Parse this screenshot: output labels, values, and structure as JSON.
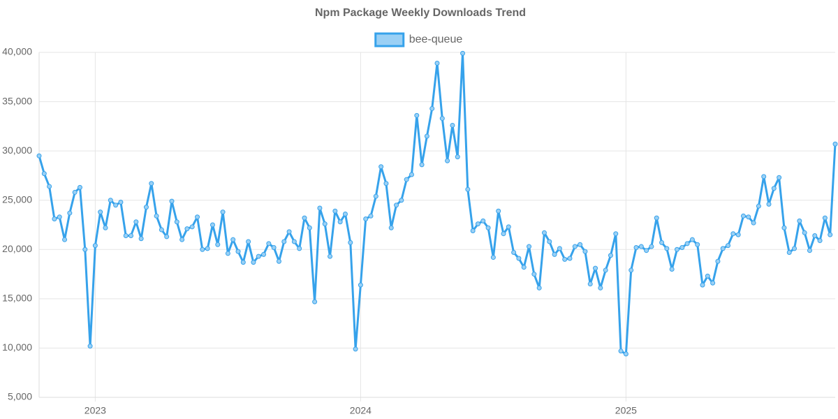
{
  "chart_data": {
    "type": "line",
    "title": "Npm Package Weekly Downloads Trend",
    "legend": "top",
    "grid": true,
    "categories": [
      null,
      null,
      null,
      null,
      null,
      null,
      null,
      null,
      null,
      null,
      null,
      "2023",
      null,
      null,
      null,
      null,
      null,
      null,
      null,
      null,
      null,
      null,
      null,
      null,
      null,
      null,
      null,
      null,
      null,
      null,
      null,
      null,
      null,
      null,
      null,
      null,
      null,
      null,
      null,
      null,
      null,
      null,
      null,
      null,
      null,
      null,
      null,
      null,
      null,
      null,
      null,
      null,
      null,
      null,
      null,
      null,
      null,
      null,
      null,
      null,
      null,
      null,
      null,
      "2024",
      null,
      null,
      null,
      null,
      null,
      null,
      null,
      null,
      null,
      null,
      null,
      null,
      null,
      null,
      null,
      null,
      null,
      null,
      null,
      null,
      null,
      null,
      null,
      null,
      null,
      null,
      null,
      null,
      null,
      null,
      null,
      null,
      null,
      null,
      null,
      null,
      null,
      null,
      null,
      null,
      null,
      null,
      null,
      null,
      null,
      null,
      null,
      null,
      null,
      null,
      null,
      "2025",
      null,
      null,
      null,
      null,
      null,
      null,
      null,
      null,
      null,
      null,
      null,
      null,
      null,
      null,
      null,
      null,
      null,
      null,
      null,
      null,
      null,
      null,
      null,
      null,
      null,
      null,
      null,
      null,
      null,
      null,
      null,
      null,
      null,
      null,
      null,
      null,
      null,
      null,
      null,
      null,
      null
    ],
    "series": [
      {
        "name": "bee-queue",
        "color": "#36a2eb",
        "fill": "#9ad0f5",
        "values": [
          29500,
          27700,
          26400,
          23100,
          23300,
          21000,
          23700,
          25800,
          26300,
          20000,
          10200,
          20400,
          23800,
          22200,
          25000,
          24500,
          24800,
          21400,
          21400,
          22800,
          21100,
          24300,
          26700,
          23400,
          22000,
          21300,
          24900,
          22800,
          21000,
          22100,
          22300,
          23300,
          20000,
          20100,
          22500,
          20500,
          23800,
          19600,
          21000,
          19800,
          18700,
          20800,
          18700,
          19300,
          19500,
          20600,
          20200,
          18800,
          20800,
          21800,
          20800,
          20100,
          23200,
          22200,
          14700,
          24200,
          22600,
          19300,
          23900,
          22800,
          23600,
          20700,
          9900,
          16400,
          23100,
          23400,
          25400,
          28400,
          26700,
          22200,
          24500,
          25000,
          27100,
          27600,
          33600,
          28600,
          31500,
          34300,
          38900,
          33300,
          29000,
          32600,
          29400,
          39900,
          26100,
          21900,
          22600,
          22900,
          22200,
          19200,
          23900,
          21600,
          22300,
          19700,
          19100,
          18200,
          20300,
          17500,
          16100,
          21700,
          20800,
          19500,
          20100,
          19000,
          19100,
          20300,
          20500,
          19800,
          16500,
          18100,
          16100,
          17900,
          19400,
          21600,
          9700,
          9400,
          17900,
          20200,
          20300,
          19900,
          20300,
          23200,
          20700,
          20100,
          18000,
          20000,
          20200,
          20600,
          21000,
          20500,
          16400,
          17300,
          16600,
          18800,
          20100,
          20400,
          21600,
          21500,
          23400,
          23300,
          22700,
          24400,
          27400,
          24600,
          26200,
          27300,
          22200,
          19700,
          20100,
          22900,
          21700,
          19900,
          21400,
          20900,
          23200,
          21500,
          30700
        ]
      }
    ],
    "ylim": [
      5000,
      40000
    ],
    "yticks": [
      {
        "value": 5000,
        "label": "5,000"
      },
      {
        "value": 10000,
        "label": "10,000"
      },
      {
        "value": 15000,
        "label": "15,000"
      },
      {
        "value": 20000,
        "label": "20,000"
      },
      {
        "value": 25000,
        "label": "25,000"
      },
      {
        "value": 30000,
        "label": "30,000"
      },
      {
        "value": 35000,
        "label": "35,000"
      },
      {
        "value": 40000,
        "label": "40,000"
      }
    ]
  }
}
